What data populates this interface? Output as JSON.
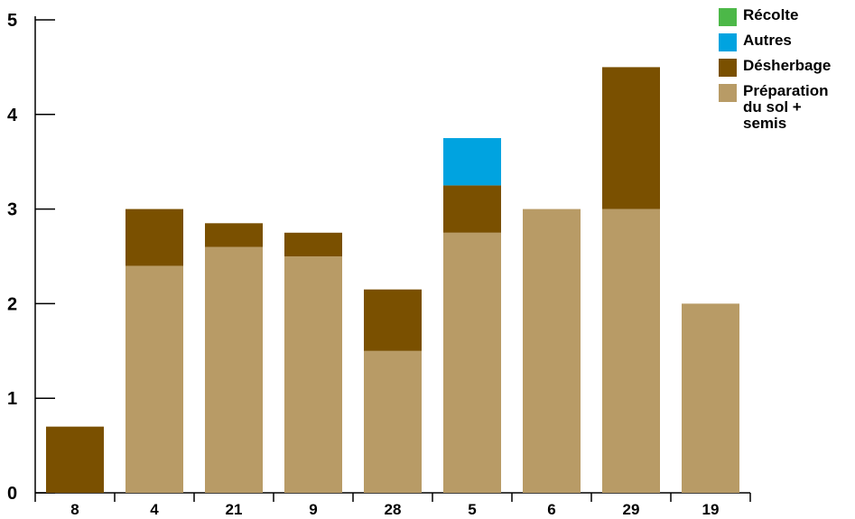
{
  "chart_data": {
    "type": "bar",
    "stacked": true,
    "categories": [
      "8",
      "4",
      "21",
      "9",
      "28",
      "5",
      "6",
      "29",
      "19"
    ],
    "series": [
      {
        "name": "Préparation du sol + semis",
        "color": "#b89b66",
        "values": [
          0,
          2.4,
          2.6,
          2.5,
          1.5,
          2.75,
          3.0,
          3.0,
          2.0
        ]
      },
      {
        "name": "Désherbage",
        "color": "#7a5000",
        "values": [
          0.7,
          0.6,
          0.25,
          0.25,
          0.65,
          0.5,
          0,
          1.5,
          0
        ]
      },
      {
        "name": "Autres",
        "color": "#00a3e0",
        "values": [
          0,
          0,
          0,
          0,
          0,
          0.5,
          0,
          0,
          0
        ]
      },
      {
        "name": "Récolte",
        "color": "#4cb848",
        "values": [
          0,
          0,
          0,
          0,
          0,
          0,
          0,
          0,
          0
        ]
      }
    ],
    "ylim": [
      0,
      5
    ],
    "yticks": [
      "0",
      "1",
      "2",
      "3",
      "4",
      "5"
    ],
    "legend_position": "top-right",
    "legend_order": [
      "Récolte",
      "Autres",
      "Désherbage",
      "Préparation du sol + semis"
    ],
    "grid": false
  }
}
